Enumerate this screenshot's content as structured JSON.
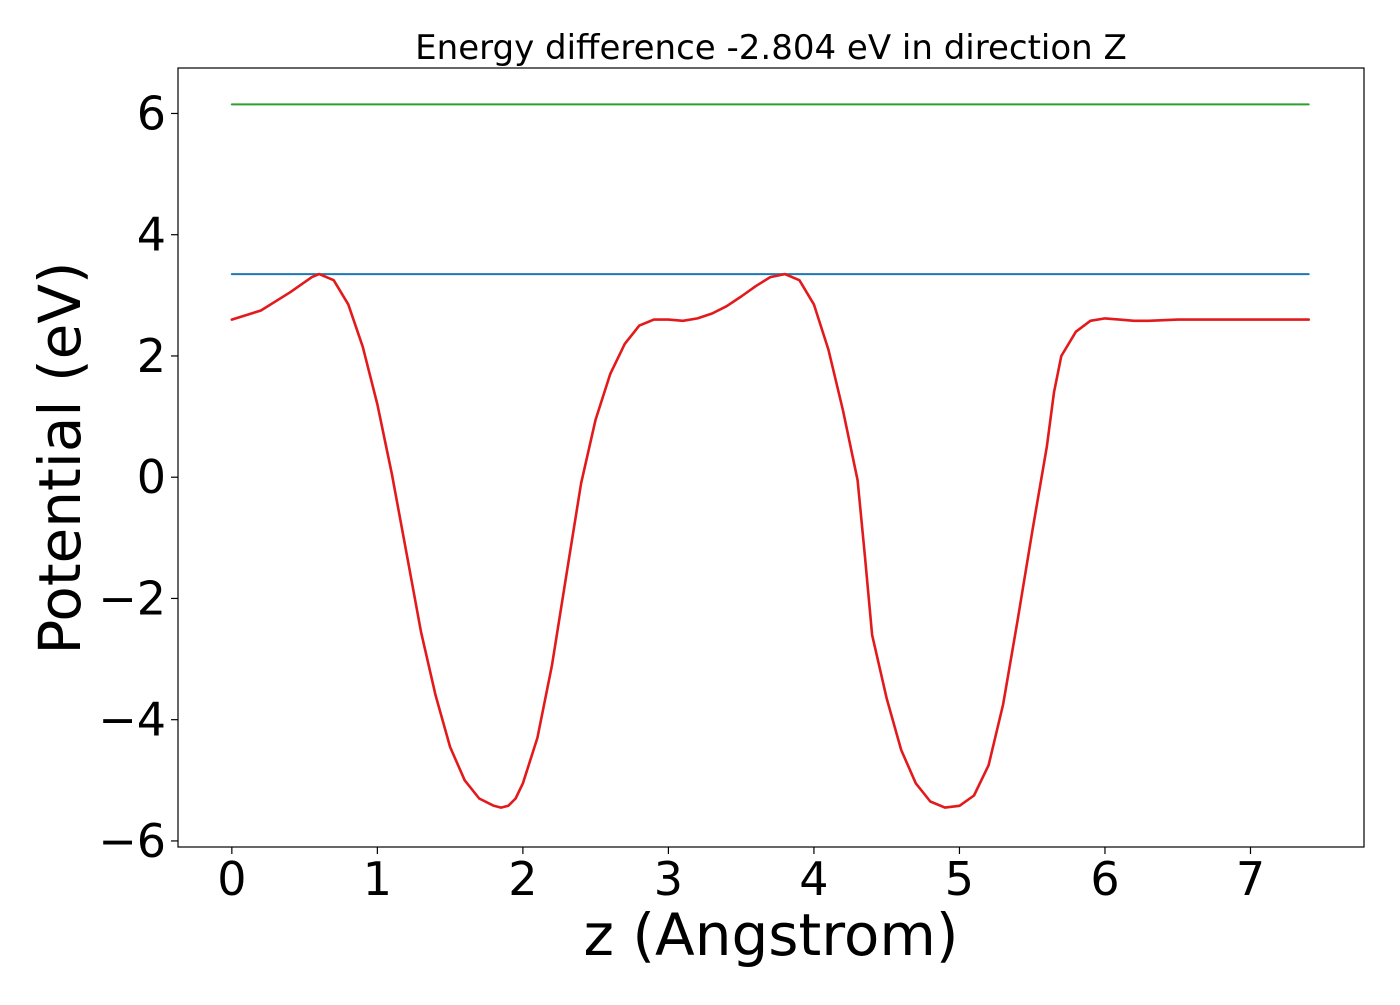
{
  "chart_data": {
    "type": "line",
    "title": "Energy difference -2.804 eV in direction Z",
    "xlabel": "z (Angstrom)",
    "ylabel": "Potential (eV)",
    "xlim": [
      -0.37,
      7.78
    ],
    "ylim": [
      -6.1,
      6.75
    ],
    "xticks": [
      0,
      1,
      2,
      3,
      4,
      5,
      6,
      7
    ],
    "yticks": [
      -6,
      -4,
      -2,
      0,
      2,
      4,
      6
    ],
    "ytick_labels": [
      "−6",
      "−4",
      "−2",
      "0",
      "2",
      "4",
      "6"
    ],
    "grid": false,
    "legend": "none",
    "series": [
      {
        "color": "#2ca02c",
        "x": [
          0,
          7.4
        ],
        "y": [
          6.15,
          6.15
        ]
      },
      {
        "color": "#1f77b4",
        "x": [
          0,
          7.4
        ],
        "y": [
          3.35,
          3.35
        ]
      },
      {
        "color": "#e31a1c",
        "x": [
          0.0,
          0.2,
          0.4,
          0.55,
          0.6,
          0.7,
          0.8,
          0.9,
          1.0,
          1.1,
          1.2,
          1.3,
          1.4,
          1.5,
          1.6,
          1.7,
          1.8,
          1.85,
          1.9,
          1.95,
          2.0,
          2.1,
          2.2,
          2.3,
          2.4,
          2.5,
          2.6,
          2.7,
          2.8,
          2.9,
          3.0,
          3.1,
          3.2,
          3.3,
          3.4,
          3.5,
          3.6,
          3.7,
          3.8,
          3.9,
          4.0,
          4.1,
          4.2,
          4.3,
          4.35,
          4.4,
          4.5,
          4.6,
          4.7,
          4.8,
          4.9,
          5.0,
          5.1,
          5.2,
          5.3,
          5.4,
          5.5,
          5.6,
          5.65,
          5.7,
          5.8,
          5.9,
          6.0,
          6.1,
          6.2,
          6.3,
          6.4,
          6.5,
          6.6,
          6.7,
          6.8,
          6.9,
          7.0,
          7.1,
          7.2,
          7.3,
          7.4
        ],
        "y": [
          2.6,
          2.75,
          3.05,
          3.3,
          3.35,
          3.25,
          2.85,
          2.15,
          1.2,
          0.05,
          -1.25,
          -2.55,
          -3.6,
          -4.45,
          -5.0,
          -5.3,
          -5.42,
          -5.45,
          -5.42,
          -5.3,
          -5.05,
          -4.3,
          -3.1,
          -1.6,
          -0.1,
          0.95,
          1.7,
          2.2,
          2.5,
          2.6,
          2.6,
          2.58,
          2.62,
          2.7,
          2.82,
          2.98,
          3.15,
          3.3,
          3.35,
          3.25,
          2.85,
          2.1,
          1.1,
          -0.05,
          -1.3,
          -2.6,
          -3.65,
          -4.5,
          -5.05,
          -5.35,
          -5.45,
          -5.42,
          -5.25,
          -4.75,
          -3.75,
          -2.35,
          -0.9,
          0.5,
          1.4,
          2.0,
          2.4,
          2.58,
          2.62,
          2.6,
          2.58,
          2.58,
          2.59,
          2.6,
          2.6,
          2.6,
          2.6,
          2.6,
          2.6,
          2.6,
          2.6,
          2.6,
          2.6
        ]
      }
    ]
  }
}
